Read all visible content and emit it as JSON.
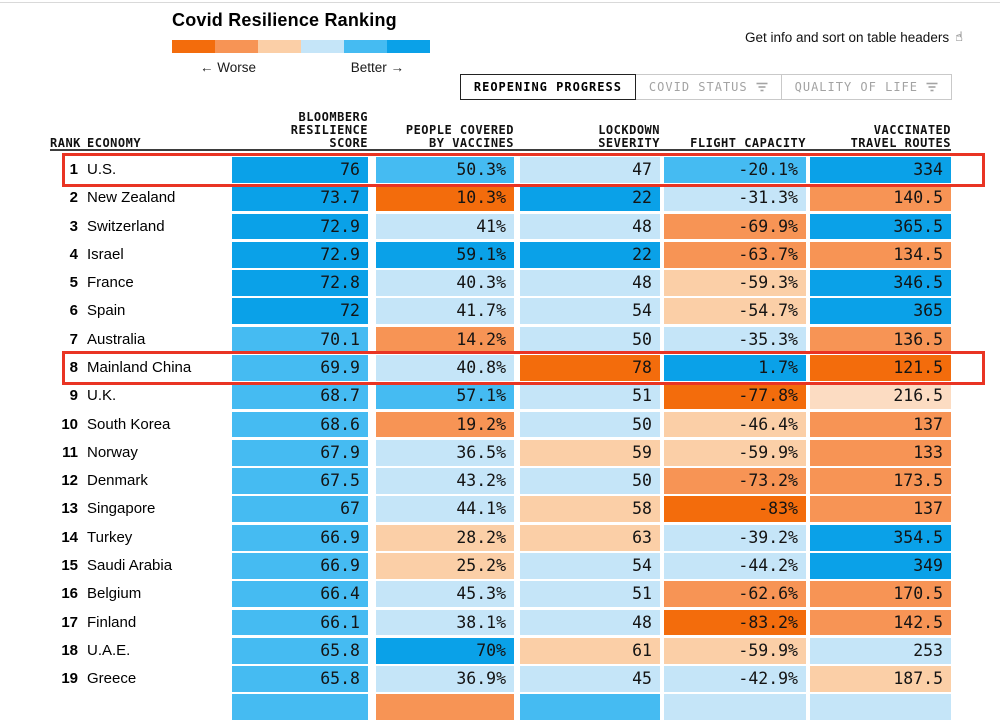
{
  "header": {
    "title": "Covid Resilience Ranking",
    "legend": {
      "worse_label": "← Worse",
      "better_label": "Better →",
      "swatches": [
        "#f36c0c",
        "#f79455",
        "#fbcfa7",
        "#c5e5f8",
        "#45bbf2",
        "#0aa1e8"
      ]
    },
    "info_text": "Get info and sort on table headers",
    "info_icon": "☝"
  },
  "tabs": [
    {
      "label": "REOPENING PROGRESS",
      "active": true,
      "has_filter_icon": false
    },
    {
      "label": "COVID STATUS",
      "active": false,
      "has_filter_icon": true
    },
    {
      "label": "QUALITY OF LIFE",
      "active": false,
      "has_filter_icon": true
    }
  ],
  "table": {
    "headers": {
      "rank": "RANK",
      "economy": "ECONOMY",
      "score": "BLOOMBERG\nRESILIENCE\nSCORE",
      "vaccines": "PEOPLE COVERED\nBY VACCINES",
      "lockdown": "LOCKDOWN\nSEVERITY",
      "flight": "FLIGHT CAPACITY",
      "routes": "VACCINATED\nTRAVEL ROUTES"
    },
    "color_key": {
      "o3": "#f36c0c",
      "o2": "#f79455",
      "o1": "#fbcfa7",
      "o0": "#fcdcc2",
      "b1": "#c5e5f8",
      "b2": "#45bbf2",
      "b3": "#0aa1e8"
    },
    "highlight_color": "#e93423",
    "rows": [
      {
        "rank": "1",
        "economy": "U.S.",
        "highlighted": true,
        "cells": [
          {
            "v": "76",
            "c": "b3"
          },
          {
            "v": "50.3%",
            "c": "b2"
          },
          {
            "v": "47",
            "c": "b1"
          },
          {
            "v": "-20.1%",
            "c": "b2"
          },
          {
            "v": "334",
            "c": "b3"
          }
        ]
      },
      {
        "rank": "2",
        "economy": "New Zealand",
        "highlighted": false,
        "cells": [
          {
            "v": "73.7",
            "c": "b3"
          },
          {
            "v": "10.3%",
            "c": "o3"
          },
          {
            "v": "22",
            "c": "b3"
          },
          {
            "v": "-31.3%",
            "c": "b1"
          },
          {
            "v": "140.5",
            "c": "o2"
          }
        ]
      },
      {
        "rank": "3",
        "economy": "Switzerland",
        "highlighted": false,
        "cells": [
          {
            "v": "72.9",
            "c": "b3"
          },
          {
            "v": "41%",
            "c": "b1"
          },
          {
            "v": "48",
            "c": "b1"
          },
          {
            "v": "-69.9%",
            "c": "o2"
          },
          {
            "v": "365.5",
            "c": "b3"
          }
        ]
      },
      {
        "rank": "4",
        "economy": "Israel",
        "highlighted": false,
        "cells": [
          {
            "v": "72.9",
            "c": "b3"
          },
          {
            "v": "59.1%",
            "c": "b3"
          },
          {
            "v": "22",
            "c": "b3"
          },
          {
            "v": "-63.7%",
            "c": "o2"
          },
          {
            "v": "134.5",
            "c": "o2"
          }
        ]
      },
      {
        "rank": "5",
        "economy": "France",
        "highlighted": false,
        "cells": [
          {
            "v": "72.8",
            "c": "b3"
          },
          {
            "v": "40.3%",
            "c": "b1"
          },
          {
            "v": "48",
            "c": "b1"
          },
          {
            "v": "-59.3%",
            "c": "o1"
          },
          {
            "v": "346.5",
            "c": "b3"
          }
        ]
      },
      {
        "rank": "6",
        "economy": "Spain",
        "highlighted": false,
        "cells": [
          {
            "v": "72",
            "c": "b3"
          },
          {
            "v": "41.7%",
            "c": "b1"
          },
          {
            "v": "54",
            "c": "b1"
          },
          {
            "v": "-54.7%",
            "c": "o1"
          },
          {
            "v": "365",
            "c": "b3"
          }
        ]
      },
      {
        "rank": "7",
        "economy": "Australia",
        "highlighted": false,
        "cells": [
          {
            "v": "70.1",
            "c": "b2"
          },
          {
            "v": "14.2%",
            "c": "o2"
          },
          {
            "v": "50",
            "c": "b1"
          },
          {
            "v": "-35.3%",
            "c": "b1"
          },
          {
            "v": "136.5",
            "c": "o2"
          }
        ]
      },
      {
        "rank": "8",
        "economy": "Mainland China",
        "highlighted": true,
        "cells": [
          {
            "v": "69.9",
            "c": "b2"
          },
          {
            "v": "40.8%",
            "c": "b1"
          },
          {
            "v": "78",
            "c": "o3"
          },
          {
            "v": "1.7%",
            "c": "b3"
          },
          {
            "v": "121.5",
            "c": "o3"
          }
        ]
      },
      {
        "rank": "9",
        "economy": "U.K.",
        "highlighted": false,
        "cells": [
          {
            "v": "68.7",
            "c": "b2"
          },
          {
            "v": "57.1%",
            "c": "b2"
          },
          {
            "v": "51",
            "c": "b1"
          },
          {
            "v": "-77.8%",
            "c": "o3"
          },
          {
            "v": "216.5",
            "c": "o0"
          }
        ]
      },
      {
        "rank": "10",
        "economy": "South Korea",
        "highlighted": false,
        "cells": [
          {
            "v": "68.6",
            "c": "b2"
          },
          {
            "v": "19.2%",
            "c": "o2"
          },
          {
            "v": "50",
            "c": "b1"
          },
          {
            "v": "-46.4%",
            "c": "o1"
          },
          {
            "v": "137",
            "c": "o2"
          }
        ]
      },
      {
        "rank": "11",
        "economy": "Norway",
        "highlighted": false,
        "cells": [
          {
            "v": "67.9",
            "c": "b2"
          },
          {
            "v": "36.5%",
            "c": "b1"
          },
          {
            "v": "59",
            "c": "o1"
          },
          {
            "v": "-59.9%",
            "c": "o1"
          },
          {
            "v": "133",
            "c": "o2"
          }
        ]
      },
      {
        "rank": "12",
        "economy": "Denmark",
        "highlighted": false,
        "cells": [
          {
            "v": "67.5",
            "c": "b2"
          },
          {
            "v": "43.2%",
            "c": "b1"
          },
          {
            "v": "50",
            "c": "b1"
          },
          {
            "v": "-73.2%",
            "c": "o2"
          },
          {
            "v": "173.5",
            "c": "o2"
          }
        ]
      },
      {
        "rank": "13",
        "economy": "Singapore",
        "highlighted": false,
        "cells": [
          {
            "v": "67",
            "c": "b2"
          },
          {
            "v": "44.1%",
            "c": "b1"
          },
          {
            "v": "58",
            "c": "o1"
          },
          {
            "v": "-83%",
            "c": "o3"
          },
          {
            "v": "137",
            "c": "o2"
          }
        ]
      },
      {
        "rank": "14",
        "economy": "Turkey",
        "highlighted": false,
        "cells": [
          {
            "v": "66.9",
            "c": "b2"
          },
          {
            "v": "28.2%",
            "c": "o1"
          },
          {
            "v": "63",
            "c": "o1"
          },
          {
            "v": "-39.2%",
            "c": "b1"
          },
          {
            "v": "354.5",
            "c": "b3"
          }
        ]
      },
      {
        "rank": "15",
        "economy": "Saudi Arabia",
        "highlighted": false,
        "cells": [
          {
            "v": "66.9",
            "c": "b2"
          },
          {
            "v": "25.2%",
            "c": "o1"
          },
          {
            "v": "54",
            "c": "b1"
          },
          {
            "v": "-44.2%",
            "c": "b1"
          },
          {
            "v": "349",
            "c": "b3"
          }
        ]
      },
      {
        "rank": "16",
        "economy": "Belgium",
        "highlighted": false,
        "cells": [
          {
            "v": "66.4",
            "c": "b2"
          },
          {
            "v": "45.3%",
            "c": "b1"
          },
          {
            "v": "51",
            "c": "b1"
          },
          {
            "v": "-62.6%",
            "c": "o2"
          },
          {
            "v": "170.5",
            "c": "o2"
          }
        ]
      },
      {
        "rank": "17",
        "economy": "Finland",
        "highlighted": false,
        "cells": [
          {
            "v": "66.1",
            "c": "b2"
          },
          {
            "v": "38.1%",
            "c": "b1"
          },
          {
            "v": "48",
            "c": "b1"
          },
          {
            "v": "-83.2%",
            "c": "o3"
          },
          {
            "v": "142.5",
            "c": "o2"
          }
        ]
      },
      {
        "rank": "18",
        "economy": "U.A.E.",
        "highlighted": false,
        "cells": [
          {
            "v": "65.8",
            "c": "b2"
          },
          {
            "v": "70%",
            "c": "b3"
          },
          {
            "v": "61",
            "c": "o1"
          },
          {
            "v": "-59.9%",
            "c": "o1"
          },
          {
            "v": "253",
            "c": "b1"
          }
        ]
      },
      {
        "rank": "19",
        "economy": "Greece",
        "highlighted": false,
        "cells": [
          {
            "v": "65.8",
            "c": "b2"
          },
          {
            "v": "36.9%",
            "c": "b1"
          },
          {
            "v": "45",
            "c": "b1"
          },
          {
            "v": "-42.9%",
            "c": "b1"
          },
          {
            "v": "187.5",
            "c": "o1"
          }
        ]
      },
      {
        "rank": "",
        "economy": "",
        "highlighted": false,
        "cells": [
          {
            "v": "",
            "c": "b2"
          },
          {
            "v": "",
            "c": "o2"
          },
          {
            "v": "",
            "c": "b2"
          },
          {
            "v": "",
            "c": "b1"
          },
          {
            "v": "",
            "c": "b1"
          }
        ]
      }
    ]
  }
}
